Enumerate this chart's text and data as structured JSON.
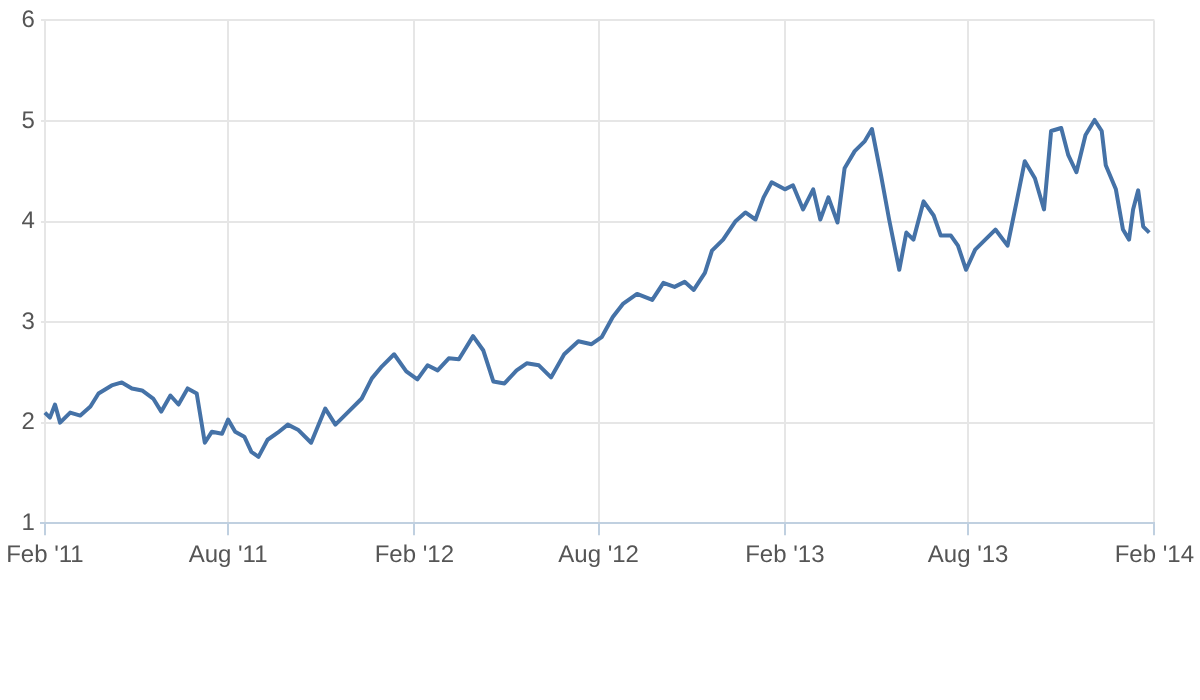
{
  "chart_data": {
    "type": "line",
    "grid": true,
    "legend": false,
    "marker": "none",
    "line_style": "solid",
    "xlim": [
      "2011-01-28",
      "2014-02-01"
    ],
    "xticks": [
      {
        "value": "2011-02-01",
        "label": "Feb '11"
      },
      {
        "value": "2011-08-01",
        "label": "Aug '11"
      },
      {
        "value": "2012-02-01",
        "label": "Feb '12"
      },
      {
        "value": "2012-08-01",
        "label": "Aug '12"
      },
      {
        "value": "2013-02-01",
        "label": "Feb '13"
      },
      {
        "value": "2013-08-01",
        "label": "Aug '13"
      },
      {
        "value": "2014-02-01",
        "label": "Feb '14"
      }
    ],
    "ylim": [
      1,
      6
    ],
    "yticks": [
      1,
      2,
      3,
      4,
      5,
      6
    ],
    "series": [
      {
        "color": "#4572a7",
        "x": [
          "2011-02-01",
          "2011-02-06",
          "2011-02-11",
          "2011-02-16",
          "2011-02-26",
          "2011-03-08",
          "2011-03-18",
          "2011-03-26",
          "2011-04-08",
          "2011-04-18",
          "2011-04-28",
          "2011-05-08",
          "2011-05-19",
          "2011-05-27",
          "2011-06-05",
          "2011-06-13",
          "2011-06-22",
          "2011-07-01",
          "2011-07-09",
          "2011-07-16",
          "2011-07-26",
          "2011-08-01",
          "2011-08-08",
          "2011-08-17",
          "2011-08-24",
          "2011-08-31",
          "2011-09-09",
          "2011-09-19",
          "2011-09-29",
          "2011-10-09",
          "2011-10-22",
          "2011-11-05",
          "2011-11-15",
          "2011-11-28",
          "2011-12-11",
          "2011-12-21",
          "2011-12-31",
          "2012-01-12",
          "2012-01-24",
          "2012-02-04",
          "2012-02-14",
          "2012-02-24",
          "2012-03-06",
          "2012-03-16",
          "2012-03-30",
          "2012-04-09",
          "2012-04-19",
          "2012-04-30",
          "2012-05-12",
          "2012-05-22",
          "2012-06-03",
          "2012-06-15",
          "2012-06-28",
          "2012-07-12",
          "2012-07-25",
          "2012-08-04",
          "2012-08-15",
          "2012-08-25",
          "2012-09-08",
          "2012-09-23",
          "2012-10-04",
          "2012-10-15",
          "2012-10-25",
          "2012-11-03",
          "2012-11-14",
          "2012-11-21",
          "2012-12-02",
          "2012-12-14",
          "2012-12-24",
          "2013-01-03",
          "2013-01-11",
          "2013-01-19",
          "2013-02-01",
          "2013-02-09",
          "2013-02-19",
          "2013-03-01",
          "2013-03-08",
          "2013-03-16",
          "2013-03-25",
          "2013-04-01",
          "2013-04-11",
          "2013-04-21",
          "2013-04-28",
          "2013-05-07",
          "2013-05-15",
          "2013-05-25",
          "2013-06-01",
          "2013-06-08",
          "2013-06-18",
          "2013-06-28",
          "2013-07-05",
          "2013-07-15",
          "2013-07-22",
          "2013-07-30",
          "2013-08-08",
          "2013-08-18",
          "2013-08-28",
          "2013-09-09",
          "2013-09-18",
          "2013-09-26",
          "2013-10-06",
          "2013-10-15",
          "2013-10-22",
          "2013-11-01",
          "2013-11-08",
          "2013-11-16",
          "2013-11-25",
          "2013-12-04",
          "2013-12-11",
          "2013-12-15",
          "2013-12-25",
          "2014-01-01",
          "2014-01-07",
          "2014-01-11",
          "2014-01-16",
          "2014-01-21",
          "2014-01-27"
        ],
        "values": [
          2.1,
          2.05,
          2.18,
          2.0,
          2.1,
          2.07,
          2.16,
          2.29,
          2.37,
          2.4,
          2.34,
          2.32,
          2.24,
          2.11,
          2.27,
          2.18,
          2.34,
          2.29,
          1.8,
          1.91,
          1.89,
          2.03,
          1.91,
          1.86,
          1.71,
          1.66,
          1.83,
          1.9,
          1.98,
          1.93,
          1.8,
          2.14,
          1.98,
          2.11,
          2.24,
          2.44,
          2.56,
          2.68,
          2.51,
          2.43,
          2.57,
          2.52,
          2.64,
          2.63,
          2.86,
          2.72,
          2.41,
          2.39,
          2.52,
          2.59,
          2.57,
          2.45,
          2.68,
          2.81,
          2.78,
          2.85,
          3.05,
          3.18,
          3.28,
          3.22,
          3.39,
          3.35,
          3.4,
          3.32,
          3.49,
          3.71,
          3.82,
          4.0,
          4.09,
          4.02,
          4.24,
          4.39,
          4.32,
          4.36,
          4.12,
          4.32,
          4.02,
          4.24,
          3.99,
          4.53,
          4.7,
          4.8,
          4.92,
          4.46,
          4.02,
          3.52,
          3.89,
          3.82,
          4.2,
          4.06,
          3.86,
          3.86,
          3.76,
          3.52,
          3.72,
          3.82,
          3.92,
          3.76,
          4.2,
          4.6,
          4.43,
          4.12,
          4.9,
          4.93,
          4.66,
          4.49,
          4.86,
          5.01,
          4.9,
          4.56,
          4.32,
          3.92,
          3.82,
          4.12,
          4.31,
          3.95,
          3.89
        ]
      }
    ]
  }
}
